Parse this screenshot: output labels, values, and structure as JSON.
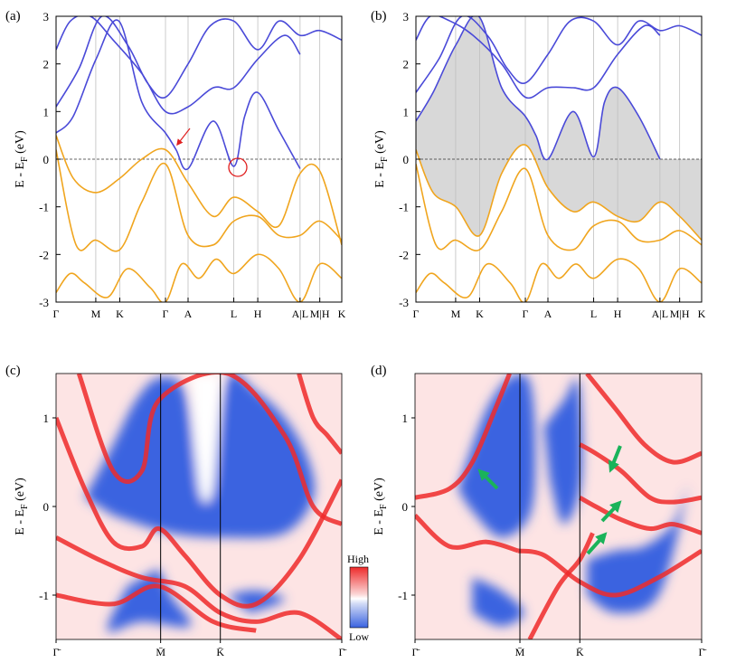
{
  "colors": {
    "conduction": "#4a4ad8",
    "valence": "#f0a51e",
    "fill": "#d8d8d8",
    "map_high": "#ee2a2a",
    "map_mid": "#ffffff",
    "map_low": "#3a63e0",
    "arrow_red": "#e02020",
    "arrow_green": "#1ab35a"
  },
  "colorbar": {
    "high": "High",
    "low": "Low"
  },
  "chart_data": [
    {
      "panel": "(a)",
      "type": "line",
      "ylabel_main": "E - E",
      "ylabel_sub": "F",
      "ylabel_unit": " (eV)",
      "ylim": [
        -3,
        3
      ],
      "yticks": [
        "3",
        "2",
        "1",
        "0",
        "-1",
        "-2",
        "-3"
      ],
      "kpath": [
        "Γ",
        "M",
        "K",
        "Γ",
        "A",
        "L",
        "H",
        "A|L",
        "M|H",
        "K"
      ],
      "kpos": [
        0,
        0.139,
        0.223,
        0.383,
        0.462,
        0.622,
        0.706,
        0.854,
        0.923,
        1.0
      ],
      "fermi_line": 0,
      "shaded_gap": false,
      "series": [
        {
          "band": "conduction",
          "x": [
            0,
            0.06,
            0.14,
            0.22,
            0.3,
            0.383,
            0.42,
            0.462,
            0.55,
            0.622,
            0.66,
            0.706,
            0.78,
            0.854
          ],
          "y": [
            0.55,
            0.9,
            2.1,
            2.9,
            1.2,
            0.55,
            0.2,
            -0.2,
            0.8,
            -0.15,
            0.9,
            1.4,
            0.6,
            -0.2
          ]
        },
        {
          "band": "conduction",
          "x": [
            0,
            0.05,
            0.12,
            0.2,
            0.3,
            0.383,
            0.462,
            0.55,
            0.622,
            0.706,
            0.8,
            0.854
          ],
          "y": [
            2.3,
            2.9,
            3.0,
            2.5,
            1.8,
            1.0,
            1.1,
            1.5,
            1.5,
            2.1,
            2.6,
            2.2
          ]
        },
        {
          "band": "conduction",
          "x": [
            0,
            0.08,
            0.16,
            0.25,
            0.32,
            0.383,
            0.462,
            0.54,
            0.622,
            0.706,
            0.78,
            0.854,
            0.923,
            1.0
          ],
          "y": [
            1.1,
            1.9,
            3.0,
            2.4,
            1.6,
            1.3,
            2.0,
            2.8,
            2.9,
            2.3,
            2.9,
            2.6,
            2.7,
            2.5
          ]
        },
        {
          "band": "valence",
          "x": [
            0,
            0.06,
            0.14,
            0.223,
            0.3,
            0.383,
            0.462,
            0.55,
            0.622,
            0.706,
            0.78,
            0.854,
            0.923,
            1.0
          ],
          "y": [
            0.5,
            -0.4,
            -0.7,
            -0.4,
            0.0,
            0.2,
            -0.5,
            -1.2,
            -0.8,
            -1.1,
            -1.4,
            -0.3,
            -0.25,
            -1.8
          ]
        },
        {
          "band": "valence",
          "x": [
            0,
            0.07,
            0.139,
            0.223,
            0.3,
            0.383,
            0.462,
            0.55,
            0.622,
            0.706,
            0.78,
            0.854,
            0.923,
            1.0
          ],
          "y": [
            0.2,
            -1.8,
            -1.7,
            -1.9,
            -0.9,
            -0.1,
            -1.6,
            -1.8,
            -1.3,
            -1.2,
            -1.6,
            -1.6,
            -1.3,
            -1.7
          ]
        },
        {
          "band": "valence",
          "x": [
            0,
            0.05,
            0.1,
            0.18,
            0.25,
            0.33,
            0.383,
            0.44,
            0.5,
            0.56,
            0.622,
            0.706,
            0.78,
            0.854,
            0.923,
            1.0
          ],
          "y": [
            -2.8,
            -2.4,
            -2.6,
            -2.9,
            -2.3,
            -2.7,
            -3.0,
            -2.2,
            -2.5,
            -2.1,
            -2.4,
            -2.0,
            -2.3,
            -3.0,
            -2.2,
            -2.5
          ]
        }
      ]
    },
    {
      "panel": "(b)",
      "type": "line",
      "ylabel_main": "E - E",
      "ylabel_sub": "F",
      "ylabel_unit": " (eV)",
      "ylim": [
        -3,
        3
      ],
      "yticks": [
        "3",
        "2",
        "1",
        "0",
        "-1",
        "-2",
        "-3"
      ],
      "kpath": [
        "Γ",
        "M",
        "K",
        "Γ",
        "A",
        "L",
        "H",
        "A|L",
        "M|H",
        "K"
      ],
      "kpos": [
        0,
        0.139,
        0.223,
        0.383,
        0.462,
        0.622,
        0.706,
        0.854,
        0.923,
        1.0
      ],
      "fermi_line": 0,
      "shaded_gap": true,
      "series": [
        {
          "band": "conduction",
          "x": [
            0,
            0.06,
            0.14,
            0.22,
            0.3,
            0.383,
            0.42,
            0.462,
            0.55,
            0.622,
            0.66,
            0.706,
            0.78,
            0.854
          ],
          "y": [
            0.8,
            1.4,
            2.4,
            3.0,
            1.5,
            0.9,
            0.5,
            0.0,
            1.0,
            0.05,
            1.2,
            1.5,
            0.9,
            0.0
          ]
        },
        {
          "band": "conduction",
          "x": [
            0,
            0.05,
            0.12,
            0.2,
            0.3,
            0.383,
            0.462,
            0.55,
            0.622,
            0.706,
            0.8,
            0.854
          ],
          "y": [
            2.5,
            3.0,
            2.9,
            2.6,
            2.0,
            1.3,
            1.5,
            1.5,
            1.5,
            2.2,
            2.8,
            2.6
          ]
        },
        {
          "band": "conduction",
          "x": [
            0,
            0.08,
            0.16,
            0.25,
            0.32,
            0.383,
            0.462,
            0.54,
            0.622,
            0.706,
            0.78,
            0.854,
            0.923,
            1.0
          ],
          "y": [
            1.4,
            2.1,
            3.0,
            2.6,
            1.9,
            1.6,
            2.2,
            2.9,
            2.9,
            2.4,
            2.9,
            2.7,
            2.8,
            2.6
          ]
        },
        {
          "band": "valence",
          "x": [
            0,
            0.06,
            0.14,
            0.223,
            0.3,
            0.383,
            0.462,
            0.55,
            0.622,
            0.706,
            0.78,
            0.854,
            0.923,
            1.0
          ],
          "y": [
            0.2,
            -0.7,
            -1.0,
            -1.6,
            -0.3,
            0.3,
            -0.6,
            -1.1,
            -0.9,
            -1.2,
            -1.3,
            -0.9,
            -1.2,
            -1.7
          ]
        },
        {
          "band": "valence",
          "x": [
            0,
            0.07,
            0.139,
            0.223,
            0.3,
            0.383,
            0.462,
            0.55,
            0.622,
            0.706,
            0.78,
            0.854,
            0.923,
            1.0
          ],
          "y": [
            -0.1,
            -1.8,
            -1.7,
            -1.9,
            -1.1,
            -0.2,
            -1.6,
            -1.9,
            -1.4,
            -1.3,
            -1.7,
            -1.7,
            -1.5,
            -1.8
          ]
        },
        {
          "band": "valence",
          "x": [
            0,
            0.05,
            0.1,
            0.18,
            0.25,
            0.33,
            0.383,
            0.44,
            0.5,
            0.56,
            0.622,
            0.706,
            0.78,
            0.854,
            0.923,
            1.0
          ],
          "y": [
            -2.8,
            -2.4,
            -2.6,
            -2.9,
            -2.2,
            -2.6,
            -3.0,
            -2.2,
            -2.5,
            -2.2,
            -2.5,
            -2.1,
            -2.3,
            -3.0,
            -2.3,
            -2.6
          ]
        }
      ]
    },
    {
      "panel": "(c)",
      "type": "heatmap",
      "ylabel_main": "E - E",
      "ylabel_sub": "F",
      "ylabel_unit": " (eV)",
      "ylim": [
        -1.5,
        1.5
      ],
      "yticks": [
        "1",
        "0",
        "-1"
      ],
      "kpath": [
        "Γ̄",
        "M̄",
        "K̄",
        "Γ̄"
      ],
      "kpos": [
        0,
        0.366,
        0.575,
        1.0
      ]
    },
    {
      "panel": "(d)",
      "type": "heatmap",
      "ylabel_main": "E - E",
      "ylabel_sub": "F",
      "ylabel_unit": " (eV)",
      "ylim": [
        -1.5,
        1.5
      ],
      "yticks": [
        "1",
        "0",
        "-1"
      ],
      "kpath": [
        "Γ̄",
        "M̄",
        "K̄",
        "Γ̄"
      ],
      "kpos": [
        0,
        0.366,
        0.575,
        1.0
      ]
    }
  ]
}
